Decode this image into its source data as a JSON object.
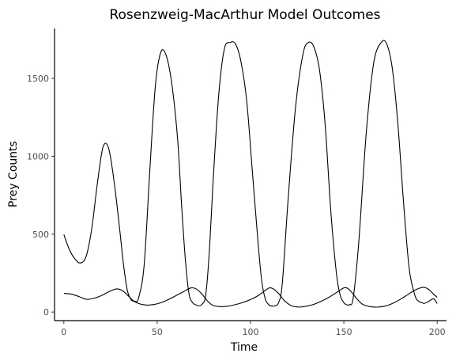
{
  "chart_data": {
    "type": "line",
    "title": "Rosenzweig-MacArthur Model Outcomes",
    "xlabel": "Time",
    "ylabel": "Prey Counts",
    "xlim": [
      -5,
      205
    ],
    "ylim": [
      -55,
      1820
    ],
    "xticks": [
      0,
      50,
      100,
      150,
      200
    ],
    "yticks": [
      0,
      500,
      1000,
      1500
    ],
    "grid": false,
    "legend": "none",
    "line_color": "#000000",
    "series": [
      {
        "x": [
          0,
          3,
          6,
          9,
          12,
          15,
          18,
          21,
          24,
          27,
          30,
          32,
          34,
          36,
          38,
          40,
          43,
          46,
          49,
          52,
          55,
          58,
          61,
          63,
          65,
          67,
          69,
          71,
          72,
          74,
          76,
          78,
          80,
          83,
          86,
          89,
          92,
          95,
          98,
          101,
          104,
          106,
          108,
          110,
          111,
          112,
          113,
          115,
          117,
          120,
          124,
          128,
          131,
          134,
          137,
          140,
          143,
          146,
          148,
          150,
          151,
          152,
          153,
          155,
          158,
          162,
          166,
          170,
          173,
          176,
          179,
          182,
          185,
          188,
          190,
          192,
          193,
          195,
          198,
          200
        ],
        "y": [
          497,
          400,
          340,
          315,
          360,
          540,
          830,
          1060,
          1050,
          830,
          520,
          300,
          140,
          80,
          70,
          90,
          300,
          900,
          1450,
          1670,
          1640,
          1450,
          1100,
          700,
          350,
          120,
          60,
          45,
          40,
          50,
          110,
          400,
          850,
          1400,
          1690,
          1730,
          1720,
          1600,
          1350,
          900,
          450,
          200,
          80,
          45,
          40,
          38,
          40,
          60,
          180,
          700,
          1300,
          1650,
          1730,
          1700,
          1550,
          1200,
          650,
          250,
          110,
          60,
          50,
          45,
          48,
          90,
          450,
          1150,
          1600,
          1730,
          1720,
          1560,
          1200,
          700,
          280,
          110,
          70,
          60,
          55,
          65,
          85,
          55
        ]
      },
      {
        "x": [
          0,
          4,
          8,
          12,
          16,
          20,
          24,
          28,
          31,
          34,
          37,
          40,
          44,
          48,
          52,
          56,
          60,
          64,
          68,
          71,
          74,
          77,
          80,
          84,
          88,
          92,
          96,
          100,
          104,
          108,
          110,
          112,
          115,
          118,
          122,
          126,
          130,
          134,
          138,
          142,
          146,
          150,
          152,
          154,
          157,
          160,
          164,
          168,
          172,
          176,
          180,
          184,
          188,
          192,
          194,
          196,
          198,
          200
        ],
        "y": [
          120,
          115,
          100,
          82,
          88,
          105,
          130,
          148,
          140,
          110,
          75,
          55,
          45,
          48,
          60,
          80,
          105,
          130,
          155,
          148,
          115,
          70,
          42,
          35,
          38,
          48,
          62,
          80,
          105,
          140,
          155,
          150,
          120,
          75,
          40,
          32,
          38,
          50,
          70,
          95,
          125,
          155,
          152,
          130,
          85,
          50,
          35,
          32,
          38,
          55,
          80,
          110,
          140,
          158,
          155,
          140,
          115,
          95
        ]
      }
    ]
  }
}
